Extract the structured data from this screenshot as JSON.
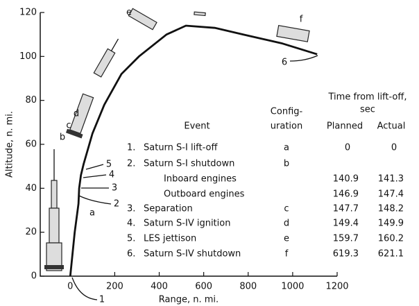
{
  "chart_data": {
    "type": "line",
    "xlabel": "Range, n. mi.",
    "ylabel": "Altitude, n. mi.",
    "x": [
      0,
      20,
      37,
      40,
      48,
      60,
      100,
      153,
      230,
      309,
      433,
      520,
      650,
      776,
      950,
      1110
    ],
    "series": [
      {
        "color": "#111111",
        "values": [
          0,
          20,
          33,
          40,
          46,
          51,
          65,
          78,
          92,
          100,
          110,
          114,
          113,
          110,
          106,
          101
        ]
      }
    ],
    "xlim": [
      -135,
      1200
    ],
    "ylim": [
      0,
      120
    ],
    "xticks": [
      0,
      200,
      400,
      600,
      800,
      1000,
      1200
    ],
    "yticks": [
      0,
      20,
      40,
      60,
      80,
      100,
      120
    ],
    "configuration_labels": [
      "a",
      "b",
      "c",
      "d",
      "e",
      "f"
    ],
    "event_markers": [
      "1",
      "2",
      "3",
      "4",
      "5",
      "6"
    ],
    "table": {
      "header": {
        "event": "Event",
        "configuration": [
          "Config-",
          "uration"
        ],
        "time": [
          "Time from lift-off,",
          "sec"
        ],
        "planned": "Planned",
        "actual": "Actual"
      },
      "rows": [
        {
          "number": "1.",
          "event": "Saturn S-I lift-off",
          "configuration": "a",
          "planned": 0,
          "actual": 0
        },
        {
          "number": "2.",
          "event": "Saturn S-I shutdown",
          "configuration": "b"
        },
        {
          "event": "Inboard engines",
          "planned": 140.9,
          "actual": 141.3
        },
        {
          "event": "Outboard engines",
          "planned": 146.9,
          "actual": 147.4
        },
        {
          "number": "3.",
          "event": "Separation",
          "configuration": "c",
          "planned": 147.7,
          "actual": 148.2
        },
        {
          "number": "4.",
          "event": "Saturn S-IV ignition",
          "configuration": "d",
          "planned": 149.4,
          "actual": 149.9
        },
        {
          "number": "5.",
          "event": "LES jettison",
          "configuration": "e",
          "planned": 159.7,
          "actual": 160.2
        },
        {
          "number": "6.",
          "event": "Saturn S-IV shutdown",
          "configuration": "f",
          "planned": 619.3,
          "actual": 621.1
        }
      ]
    }
  }
}
